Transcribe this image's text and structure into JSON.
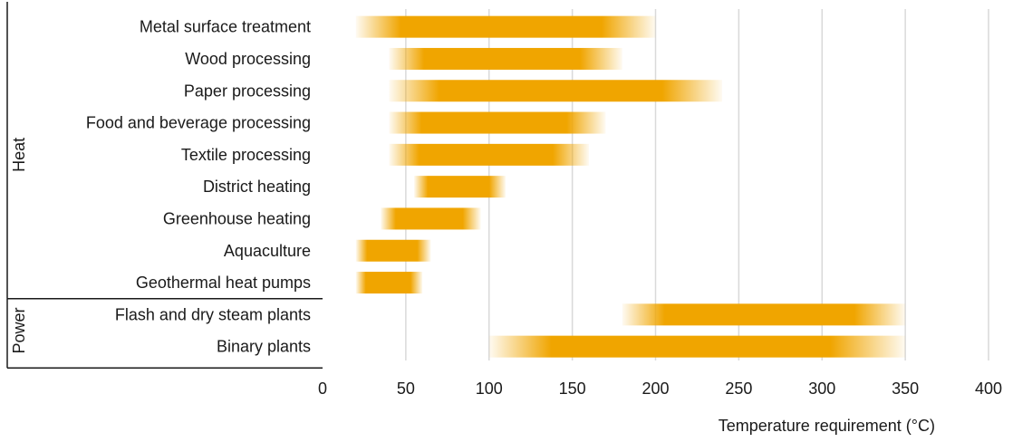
{
  "chart_data": {
    "type": "bar",
    "orientation": "horizontal",
    "subtype": "floating-range",
    "title": "",
    "xlabel": "Temperature requirement (°C)",
    "ylabel": "",
    "xlim": [
      0,
      400
    ],
    "xticks": [
      0,
      50,
      100,
      150,
      200,
      250,
      300,
      350,
      400
    ],
    "grid": true,
    "bar_color": "#f0a500",
    "grid_color": "#d9d9d9",
    "groups": [
      {
        "name": "Heat",
        "categories": [
          {
            "label": "Metal surface treatment",
            "min": 20,
            "max": 200
          },
          {
            "label": "Wood processing",
            "min": 40,
            "max": 180
          },
          {
            "label": "Paper processing",
            "min": 40,
            "max": 240
          },
          {
            "label": "Food and beverage processing",
            "min": 40,
            "max": 170
          },
          {
            "label": "Textile processing",
            "min": 40,
            "max": 160
          },
          {
            "label": "District heating",
            "min": 55,
            "max": 110
          },
          {
            "label": "Greenhouse heating",
            "min": 35,
            "max": 95
          },
          {
            "label": "Aquaculture",
            "min": 20,
            "max": 65
          },
          {
            "label": "Geothermal heat pumps",
            "min": 20,
            "max": 60
          }
        ]
      },
      {
        "name": "Power",
        "categories": [
          {
            "label": "Flash and dry steam plants",
            "min": 180,
            "max": 350
          },
          {
            "label": "Binary plants",
            "min": 100,
            "max": 350
          }
        ]
      }
    ]
  }
}
